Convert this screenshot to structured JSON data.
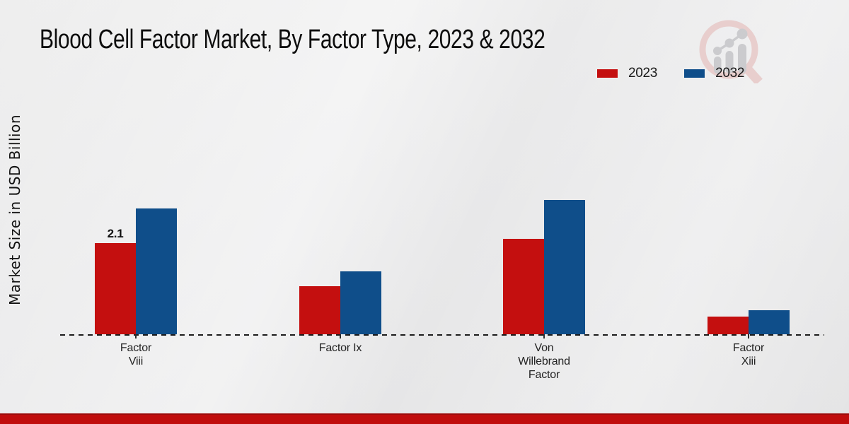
{
  "title": "Blood Cell Factor Market, By Factor Type, 2023 & 2032",
  "y_axis_label": "Market Size in USD Billion",
  "legend": [
    {
      "label": "2023",
      "color": "#c40f0f"
    },
    {
      "label": "2032",
      "color": "#0f4e8a"
    }
  ],
  "chart_data": {
    "type": "bar",
    "title": "Blood Cell Factor Market, By Factor Type, 2023 & 2032",
    "ylabel": "Market Size in USD Billion",
    "xlabel": "",
    "categories": [
      "Factor Viii",
      "Factor Ix",
      "Von Willebrand Factor",
      "Factor Xiii"
    ],
    "category_label_lines": [
      [
        "Factor",
        "Viii"
      ],
      [
        "Factor Ix"
      ],
      [
        "Von",
        "Willebrand",
        "Factor"
      ],
      [
        "Factor",
        "Xiii"
      ]
    ],
    "series": [
      {
        "name": "2023",
        "color": "#c40f0f",
        "values": [
          2.1,
          1.1,
          2.2,
          0.4
        ]
      },
      {
        "name": "2032",
        "color": "#0f4e8a",
        "values": [
          2.9,
          1.45,
          3.1,
          0.55
        ]
      }
    ],
    "value_labels": [
      {
        "series_index": 0,
        "category_index": 0,
        "text": "2.1"
      }
    ],
    "ylim": [
      0,
      3.5
    ],
    "grid": false,
    "legend_position": "top-right",
    "baseline_style": "dashed",
    "unit": "USD Billion"
  },
  "watermark": {
    "icon_name": "magnifier-growth-chart-logo"
  },
  "footer": {
    "bar_color": "#c00d0d"
  }
}
